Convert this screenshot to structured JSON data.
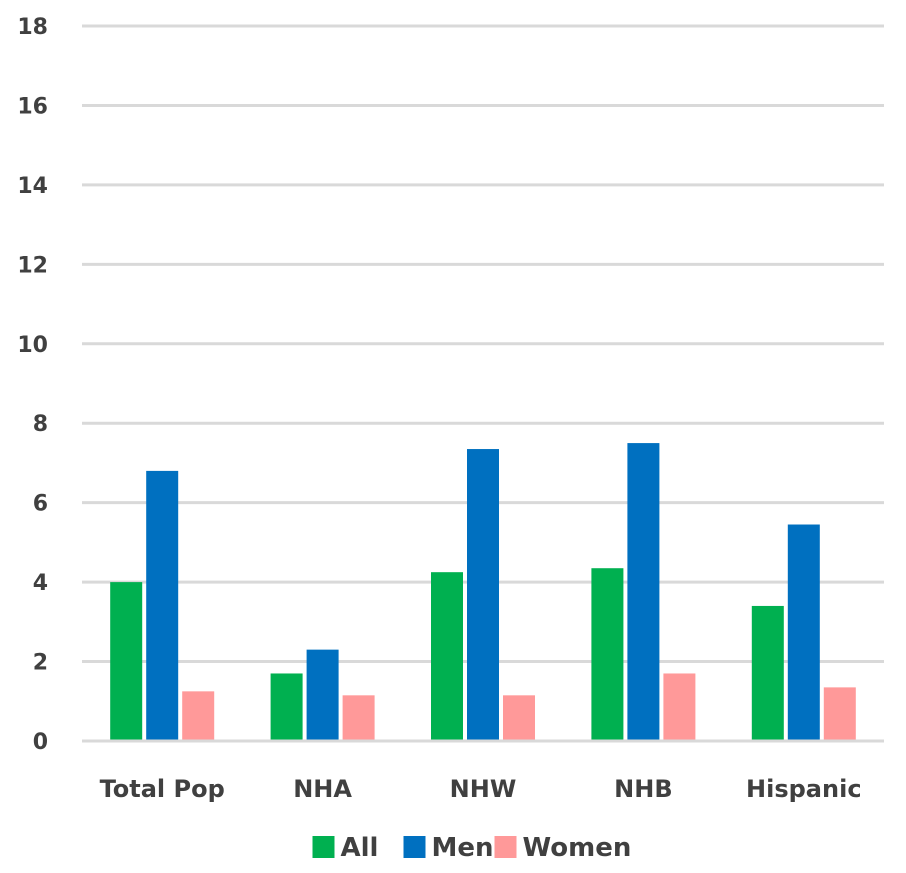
{
  "chart_data": {
    "type": "bar",
    "categories": [
      "Total Pop",
      "NHA",
      "NHW",
      "NHB",
      "Hispanic"
    ],
    "series": [
      {
        "name": "All",
        "color": "#00B050",
        "values": [
          4.0,
          1.7,
          4.25,
          4.35,
          3.4
        ]
      },
      {
        "name": "Men",
        "color": "#0070C0",
        "values": [
          6.8,
          2.3,
          7.35,
          7.5,
          5.45
        ]
      },
      {
        "name": "Women",
        "color": "#FF9999",
        "values": [
          1.25,
          1.15,
          1.15,
          1.7,
          1.35
        ]
      }
    ],
    "ylim": [
      0,
      18
    ],
    "yticks": [
      0,
      2,
      4,
      6,
      8,
      10,
      12,
      14,
      16,
      18
    ],
    "grid": true,
    "gridline_color": "#D9D9D9",
    "legend_position": "bottom"
  }
}
